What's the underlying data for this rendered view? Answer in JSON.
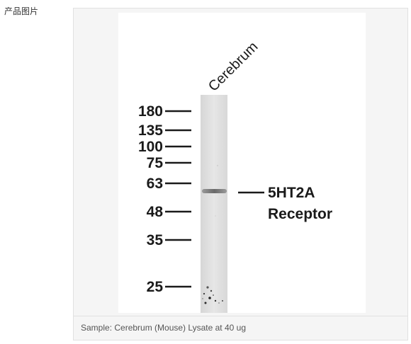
{
  "section": {
    "label": "产品图片"
  },
  "blot": {
    "lane_label": "Cerebrum",
    "markers": [
      "180",
      "135",
      "100",
      "75",
      "63",
      "48",
      "35",
      "25"
    ],
    "band_label_line1": "5HT2A",
    "band_label_line2": "Receptor"
  },
  "caption": {
    "text": "Sample: Cerebrum (Mouse) Lysate at 40 ug"
  }
}
